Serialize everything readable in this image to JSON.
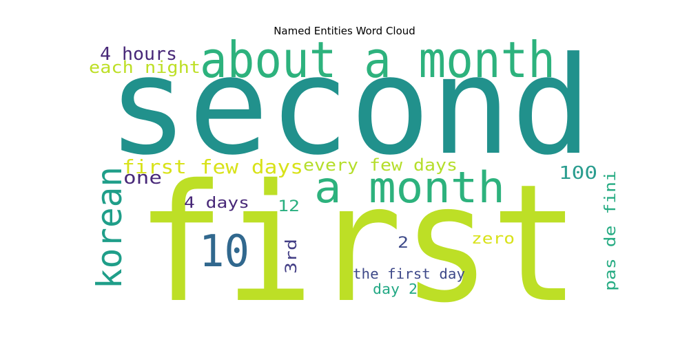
{
  "chart_data": {
    "type": "wordcloud",
    "title": "Named Entities Word Cloud",
    "words": [
      {
        "text": "second",
        "rank": 1,
        "orientation": "horizontal",
        "color": "#21918c"
      },
      {
        "text": "first",
        "rank": 2,
        "orientation": "horizontal",
        "color": "#bddf26"
      },
      {
        "text": "about a month",
        "rank": 3,
        "orientation": "horizontal",
        "color": "#2db27d"
      },
      {
        "text": "a month",
        "rank": 4,
        "orientation": "horizontal",
        "color": "#2db27d"
      },
      {
        "text": "korean",
        "rank": 5,
        "orientation": "vertical",
        "color": "#1f9e89"
      },
      {
        "text": "10",
        "rank": 6,
        "orientation": "horizontal",
        "color": "#31688e"
      },
      {
        "text": "first few days",
        "rank": 7,
        "orientation": "horizontal",
        "color": "#d8e219"
      },
      {
        "text": "every few days",
        "rank": 8,
        "orientation": "horizontal",
        "color": "#b5de2b"
      },
      {
        "text": "4 hours",
        "rank": 9,
        "orientation": "horizontal",
        "color": "#482878"
      },
      {
        "text": "each night",
        "rank": 10,
        "orientation": "horizontal",
        "color": "#bddf26"
      },
      {
        "text": "100",
        "rank": 11,
        "orientation": "horizontal",
        "color": "#2a9d8f"
      },
      {
        "text": "one",
        "rank": 12,
        "orientation": "horizontal",
        "color": "#482878"
      },
      {
        "text": "4 days",
        "rank": 13,
        "orientation": "horizontal",
        "color": "#482878"
      },
      {
        "text": "12",
        "rank": 14,
        "orientation": "horizontal",
        "color": "#29af7f"
      },
      {
        "text": "pas de fini",
        "rank": 15,
        "orientation": "vertical",
        "color": "#25ab82"
      },
      {
        "text": "zero",
        "rank": 16,
        "orientation": "horizontal",
        "color": "#d8e219"
      },
      {
        "text": "2",
        "rank": 17,
        "orientation": "horizontal",
        "color": "#3e4a89"
      },
      {
        "text": "3rd",
        "rank": 18,
        "orientation": "vertical",
        "color": "#433e85"
      },
      {
        "text": "the first day",
        "rank": 19,
        "orientation": "horizontal",
        "color": "#3e4989"
      },
      {
        "text": "day 2",
        "rank": 20,
        "orientation": "horizontal",
        "color": "#22a884"
      }
    ]
  }
}
